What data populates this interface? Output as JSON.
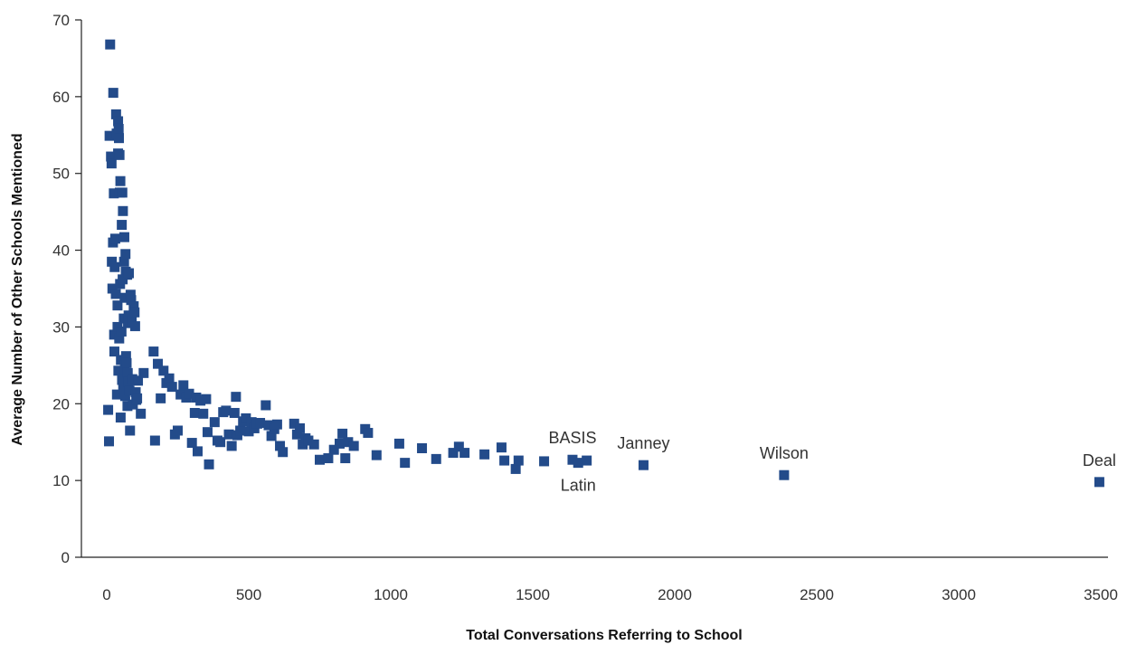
{
  "chart_data": {
    "type": "scatter",
    "title": "",
    "xlabel": "Total Conversations Referring to School",
    "ylabel": "Average Number of Other Schools Mentioned",
    "xlim": [
      -80,
      3530
    ],
    "ylim": [
      0,
      70
    ],
    "x_ticks": [
      0,
      500,
      1000,
      1500,
      2000,
      2500,
      3000,
      3500
    ],
    "y_ticks": [
      0,
      10,
      20,
      30,
      40,
      50,
      60,
      70
    ],
    "grid": false,
    "marker": "square",
    "color": "#234b8a",
    "annotations": [
      {
        "text": "BASIS",
        "x": 1640,
        "y": 12.7,
        "anchor": "above"
      },
      {
        "text": "Latin",
        "x": 1660,
        "y": 12.3,
        "anchor": "below"
      },
      {
        "text": "Janney",
        "x": 1890,
        "y": 12.0,
        "anchor": "above"
      },
      {
        "text": "Wilson",
        "x": 2385,
        "y": 10.7,
        "anchor": "above"
      },
      {
        "text": "Deal",
        "x": 3495,
        "y": 9.8,
        "anchor": "above"
      }
    ],
    "points": [
      [
        5,
        19.2
      ],
      [
        8,
        15.1
      ],
      [
        10,
        54.9
      ],
      [
        12,
        66.8
      ],
      [
        15,
        52.2
      ],
      [
        17,
        51.3
      ],
      [
        18,
        38.5
      ],
      [
        20,
        35.0
      ],
      [
        22,
        41.0
      ],
      [
        23,
        60.5
      ],
      [
        25,
        47.4
      ],
      [
        26,
        29.0
      ],
      [
        27,
        26.8
      ],
      [
        28,
        37.8
      ],
      [
        30,
        41.5
      ],
      [
        32,
        34.3
      ],
      [
        33,
        57.7
      ],
      [
        35,
        55.2
      ],
      [
        36,
        21.2
      ],
      [
        38,
        30.0
      ],
      [
        38,
        32.8
      ],
      [
        40,
        56.8
      ],
      [
        40,
        52.6
      ],
      [
        41,
        24.3
      ],
      [
        42,
        55.8
      ],
      [
        43,
        54.6
      ],
      [
        44,
        28.5
      ],
      [
        45,
        52.4
      ],
      [
        46,
        47.5
      ],
      [
        47,
        35.6
      ],
      [
        48,
        49.0
      ],
      [
        49,
        18.2
      ],
      [
        50,
        25.7
      ],
      [
        52,
        29.4
      ],
      [
        53,
        43.3
      ],
      [
        54,
        23.1
      ],
      [
        55,
        47.5
      ],
      [
        56,
        36.2
      ],
      [
        57,
        45.1
      ],
      [
        58,
        22.0
      ],
      [
        60,
        31.1
      ],
      [
        61,
        38.5
      ],
      [
        62,
        41.7
      ],
      [
        63,
        33.8
      ],
      [
        64,
        24.5
      ],
      [
        65,
        21.0
      ],
      [
        66,
        39.5
      ],
      [
        67,
        37.2
      ],
      [
        68,
        26.2
      ],
      [
        70,
        25.3
      ],
      [
        72,
        36.8
      ],
      [
        73,
        19.7
      ],
      [
        74,
        24.0
      ],
      [
        75,
        30.5
      ],
      [
        76,
        22.9
      ],
      [
        77,
        31.5
      ],
      [
        78,
        37.0
      ],
      [
        80,
        21.7
      ],
      [
        82,
        16.5
      ],
      [
        84,
        34.2
      ],
      [
        86,
        33.5
      ],
      [
        88,
        30.8
      ],
      [
        90,
        23.2
      ],
      [
        92,
        19.9
      ],
      [
        95,
        32.7
      ],
      [
        98,
        31.9
      ],
      [
        100,
        30.1
      ],
      [
        102,
        21.5
      ],
      [
        104,
        20.5
      ],
      [
        107,
        20.7
      ],
      [
        110,
        23.0
      ],
      [
        120,
        18.7
      ],
      [
        130,
        24.0
      ],
      [
        165,
        26.8
      ],
      [
        170,
        15.2
      ],
      [
        180,
        25.2
      ],
      [
        190,
        20.7
      ],
      [
        200,
        24.3
      ],
      [
        210,
        22.7
      ],
      [
        220,
        23.3
      ],
      [
        230,
        22.2
      ],
      [
        240,
        16.0
      ],
      [
        250,
        16.5
      ],
      [
        260,
        21.2
      ],
      [
        270,
        22.4
      ],
      [
        280,
        20.8
      ],
      [
        290,
        21.3
      ],
      [
        300,
        14.9
      ],
      [
        310,
        18.8
      ],
      [
        315,
        20.8
      ],
      [
        320,
        13.8
      ],
      [
        330,
        20.4
      ],
      [
        340,
        18.7
      ],
      [
        350,
        20.6
      ],
      [
        355,
        16.3
      ],
      [
        360,
        12.1
      ],
      [
        380,
        17.6
      ],
      [
        390,
        15.2
      ],
      [
        400,
        15.0
      ],
      [
        410,
        18.9
      ],
      [
        420,
        19.1
      ],
      [
        430,
        16.0
      ],
      [
        440,
        14.5
      ],
      [
        450,
        18.8
      ],
      [
        455,
        20.9
      ],
      [
        460,
        15.9
      ],
      [
        470,
        16.5
      ],
      [
        480,
        17.7
      ],
      [
        490,
        18.1
      ],
      [
        500,
        16.4
      ],
      [
        510,
        17.6
      ],
      [
        520,
        16.8
      ],
      [
        530,
        17.4
      ],
      [
        540,
        17.5
      ],
      [
        560,
        19.8
      ],
      [
        570,
        17.2
      ],
      [
        580,
        15.8
      ],
      [
        590,
        16.7
      ],
      [
        600,
        17.3
      ],
      [
        610,
        14.5
      ],
      [
        620,
        13.7
      ],
      [
        660,
        17.4
      ],
      [
        670,
        16.0
      ],
      [
        680,
        16.8
      ],
      [
        690,
        14.7
      ],
      [
        700,
        15.5
      ],
      [
        710,
        15.2
      ],
      [
        730,
        14.7
      ],
      [
        750,
        12.7
      ],
      [
        780,
        12.9
      ],
      [
        800,
        14.0
      ],
      [
        820,
        14.8
      ],
      [
        830,
        16.1
      ],
      [
        840,
        12.9
      ],
      [
        850,
        15.0
      ],
      [
        870,
        14.5
      ],
      [
        910,
        16.7
      ],
      [
        920,
        16.2
      ],
      [
        950,
        13.3
      ],
      [
        1030,
        14.8
      ],
      [
        1050,
        12.3
      ],
      [
        1110,
        14.2
      ],
      [
        1160,
        12.8
      ],
      [
        1220,
        13.6
      ],
      [
        1240,
        14.4
      ],
      [
        1260,
        13.6
      ],
      [
        1330,
        13.4
      ],
      [
        1390,
        14.3
      ],
      [
        1400,
        12.6
      ],
      [
        1440,
        11.5
      ],
      [
        1450,
        12.6
      ],
      [
        1540,
        12.5
      ],
      [
        1640,
        12.7
      ],
      [
        1660,
        12.3
      ],
      [
        1690,
        12.6
      ],
      [
        1890,
        12.0
      ],
      [
        2385,
        10.7
      ],
      [
        3495,
        9.8
      ]
    ]
  }
}
